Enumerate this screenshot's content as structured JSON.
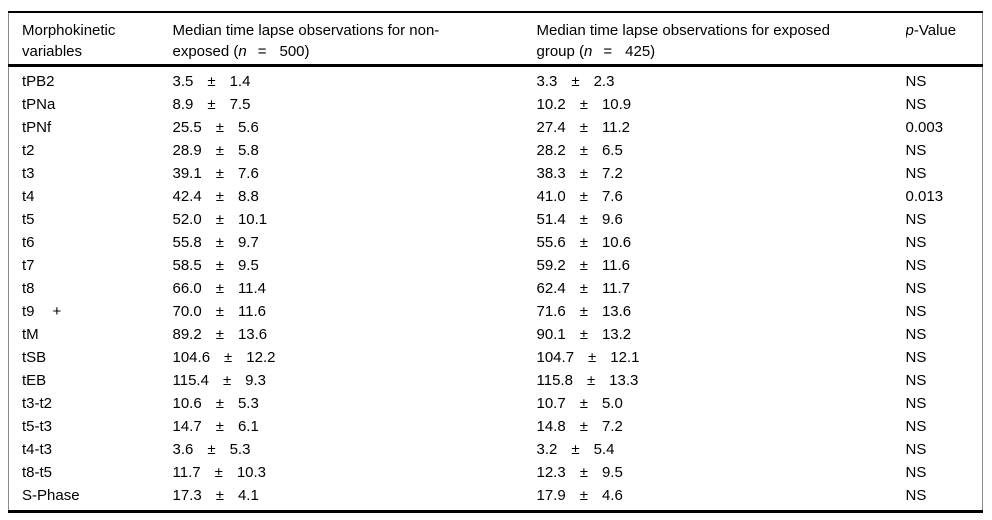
{
  "symbols": {
    "pm": "±"
  },
  "header": {
    "col1": {
      "line1": "Morphokinetic",
      "line2": "variables"
    },
    "col2": {
      "line1": "Median time lapse observations for non-",
      "line2_pre": "exposed (",
      "n": "n",
      "eq": "=",
      "count": "500)"
    },
    "col3": {
      "line1": "Median time lapse observations for exposed",
      "line2_pre": "group (",
      "n": "n",
      "eq": "=",
      "count": "425)"
    },
    "col4": {
      "italic": "p",
      "rest": "-Value"
    }
  },
  "rows": [
    {
      "variable": "tPB2",
      "ne_mean": "3.5",
      "ne_sd": "1.4",
      "ex_mean": "3.3",
      "ex_sd": "2.3",
      "p": "NS"
    },
    {
      "variable": "tPNa",
      "ne_mean": "8.9",
      "ne_sd": "7.5",
      "ex_mean": "10.2",
      "ex_sd": "10.9",
      "p": "NS"
    },
    {
      "variable": "tPNf",
      "ne_mean": "25.5",
      "ne_sd": "5.6",
      "ex_mean": "27.4",
      "ex_sd": "11.2",
      "p": "0.003"
    },
    {
      "variable": "t2",
      "ne_mean": "28.9",
      "ne_sd": "5.8",
      "ex_mean": "28.2",
      "ex_sd": "6.5",
      "p": "NS"
    },
    {
      "variable": "t3",
      "ne_mean": "39.1",
      "ne_sd": "7.6",
      "ex_mean": "38.3",
      "ex_sd": "7.2",
      "p": "NS"
    },
    {
      "variable": "t4",
      "ne_mean": "42.4",
      "ne_sd": "8.8",
      "ex_mean": "41.0",
      "ex_sd": "7.6",
      "p": "0.013"
    },
    {
      "variable": "t5",
      "ne_mean": "52.0",
      "ne_sd": "10.1",
      "ex_mean": "51.4",
      "ex_sd": "9.6",
      "p": "NS"
    },
    {
      "variable": "t6",
      "ne_mean": "55.8",
      "ne_sd": "9.7",
      "ex_mean": "55.6",
      "ex_sd": "10.6",
      "p": "NS"
    },
    {
      "variable": "t7",
      "ne_mean": "58.5",
      "ne_sd": "9.5",
      "ex_mean": "59.2",
      "ex_sd": "11.6",
      "p": "NS"
    },
    {
      "variable": "t8",
      "ne_mean": "66.0",
      "ne_sd": "11.4",
      "ex_mean": "62.4",
      "ex_sd": "11.7",
      "p": "NS"
    },
    {
      "variable": "t9",
      "suffix": "+",
      "ne_mean": "70.0",
      "ne_sd": "11.6",
      "ex_mean": "71.6",
      "ex_sd": "13.6",
      "p": "NS"
    },
    {
      "variable": "tM",
      "ne_mean": "89.2",
      "ne_sd": "13.6",
      "ex_mean": "90.1",
      "ex_sd": "13.2",
      "p": "NS"
    },
    {
      "variable": "tSB",
      "ne_mean": "104.6",
      "ne_sd": "12.2",
      "ex_mean": "104.7",
      "ex_sd": "12.1",
      "p": "NS"
    },
    {
      "variable": "tEB",
      "ne_mean": "115.4",
      "ne_sd": "9.3",
      "ex_mean": "115.8",
      "ex_sd": "13.3",
      "p": "NS"
    },
    {
      "variable": "t3-t2",
      "ne_mean": "10.6",
      "ne_sd": "5.3",
      "ex_mean": "10.7",
      "ex_sd": "5.0",
      "p": "NS"
    },
    {
      "variable": "t5-t3",
      "ne_mean": "14.7",
      "ne_sd": "6.1",
      "ex_mean": "14.8",
      "ex_sd": "7.2",
      "p": "NS"
    },
    {
      "variable": "t4-t3",
      "ne_mean": "3.6",
      "ne_sd": "5.3",
      "ex_mean": "3.2",
      "ex_sd": "5.4",
      "p": "NS"
    },
    {
      "variable": "t8-t5",
      "ne_mean": "11.7",
      "ne_sd": "10.3",
      "ex_mean": "12.3",
      "ex_sd": "9.5",
      "p": "NS"
    },
    {
      "variable": "S-Phase",
      "ne_mean": "17.3",
      "ne_sd": "4.1",
      "ex_mean": "17.9",
      "ex_sd": "4.6",
      "p": "NS"
    }
  ]
}
